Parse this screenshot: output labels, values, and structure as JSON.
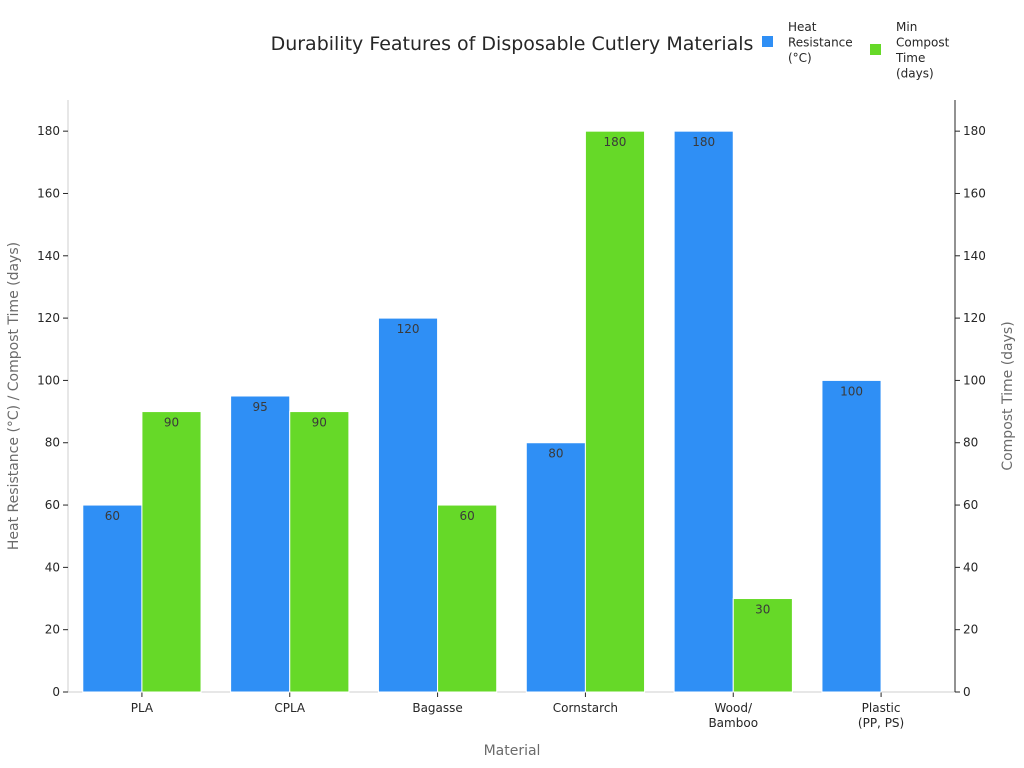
{
  "chart_data": {
    "type": "bar",
    "title": "Durability Features of Disposable Cutlery Materials",
    "xlabel": "Material",
    "ylabel": "Heat Resistance (°C) / Compost Time (days)",
    "y2label": "Compost Time (days)",
    "categories": [
      [
        "PLA"
      ],
      [
        "CPLA"
      ],
      [
        "Bagasse"
      ],
      [
        "Cornstarch"
      ],
      [
        "Wood/",
        "Bamboo"
      ],
      [
        "Plastic",
        "(PP, PS)"
      ]
    ],
    "series": [
      {
        "name": [
          "Heat",
          "Resistance",
          "(°C)"
        ],
        "color": "#2f8ff5",
        "values": [
          60,
          95,
          120,
          80,
          180,
          100
        ]
      },
      {
        "name": [
          "Min",
          "Compost",
          "Time",
          "(days)"
        ],
        "color": "#66d928",
        "values": [
          90,
          90,
          60,
          180,
          30,
          null
        ]
      }
    ],
    "ylim": [
      0,
      190
    ],
    "yticks": [
      0,
      20,
      40,
      60,
      80,
      100,
      120,
      140,
      160,
      180
    ],
    "grid": false,
    "legend_position": "top-right"
  }
}
